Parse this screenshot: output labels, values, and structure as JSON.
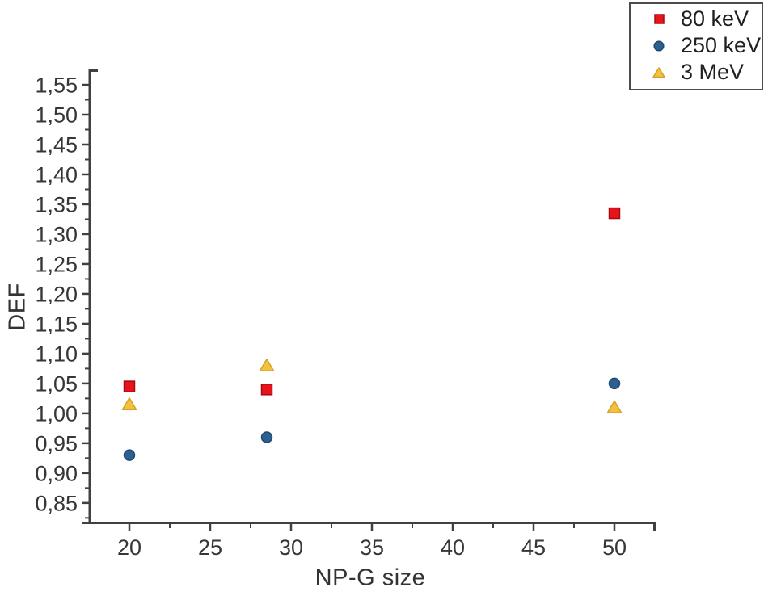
{
  "chart_data": {
    "type": "scatter",
    "title": "",
    "xlabel": "NP-G size",
    "ylabel": "DEF",
    "xlim": [
      17.25,
      52.5
    ],
    "ylim": [
      0.816,
      1.573
    ],
    "x_ticks": [
      20,
      25,
      30,
      35,
      40,
      45,
      50
    ],
    "x_tick_labels": [
      "20",
      "25",
      "30",
      "35",
      "40",
      "45",
      "50"
    ],
    "x_minor_ticks": [
      22.5,
      27.5,
      32.5,
      37.5,
      42.5,
      47.5
    ],
    "y_ticks": [
      0.85,
      0.9,
      0.95,
      1.0,
      1.05,
      1.1,
      1.15,
      1.2,
      1.25,
      1.3,
      1.35,
      1.4,
      1.45,
      1.5,
      1.55
    ],
    "y_tick_labels": [
      "0,85",
      "0,90",
      "0,95",
      "1,00",
      "1,05",
      "1,10",
      "1,15",
      "1,20",
      "1,25",
      "1,30",
      "1,35",
      "1,40",
      "1,45",
      "1,50",
      "1,55"
    ],
    "y_minor_ticks": [
      0.825,
      0.875,
      0.925,
      0.975,
      1.025,
      1.075,
      1.125,
      1.175,
      1.225,
      1.275,
      1.325,
      1.375,
      1.425,
      1.475,
      1.525
    ],
    "decimal_separator": ",",
    "grid": false,
    "legend_position": "top-right",
    "axis_color": "#404040",
    "tick_text_color": "#363636",
    "x": [
      20,
      28.5,
      50
    ],
    "series": [
      {
        "name": "80 keV",
        "marker": "square",
        "color": "#e8141c",
        "edge": "#a80a10",
        "x": [
          20,
          28.5,
          50
        ],
        "values": [
          1.045,
          1.04,
          1.335
        ]
      },
      {
        "name": "250 keV",
        "marker": "circle",
        "color": "#2e608f",
        "edge": "#1c4a74",
        "x": [
          20,
          28.5,
          50
        ],
        "values": [
          0.93,
          0.96,
          1.05
        ]
      },
      {
        "name": "3 MeV",
        "marker": "triangle",
        "color": "#f2c13d",
        "edge": "#d9a025",
        "x": [
          20,
          28.5,
          50
        ],
        "values": [
          1.015,
          1.08,
          1.01
        ]
      }
    ]
  }
}
